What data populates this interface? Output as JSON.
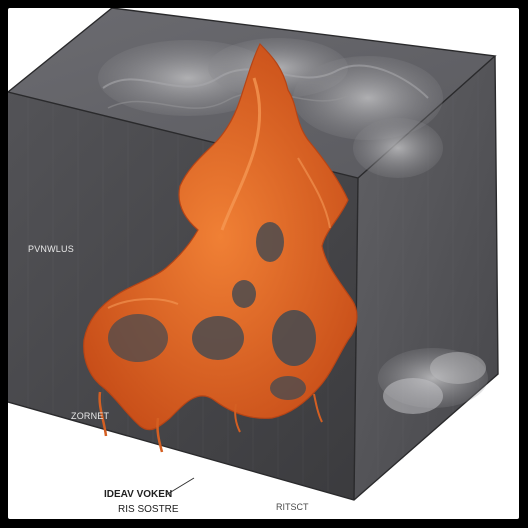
{
  "image": {
    "labels": {
      "left": "PVNWLUS",
      "lower": "ZORNET"
    },
    "captions": {
      "line1": "IDEAV VOKEN",
      "line2": "RIS SOSTRE",
      "line3": "RITSCT"
    },
    "colors": {
      "cube_face": "#4f4f52",
      "cube_top": "#5c5c60",
      "cube_edge": "#2a2a2c",
      "orange_main": "#e06a2c",
      "orange_dark": "#b54416",
      "smoke": "#a8a8aa"
    }
  }
}
